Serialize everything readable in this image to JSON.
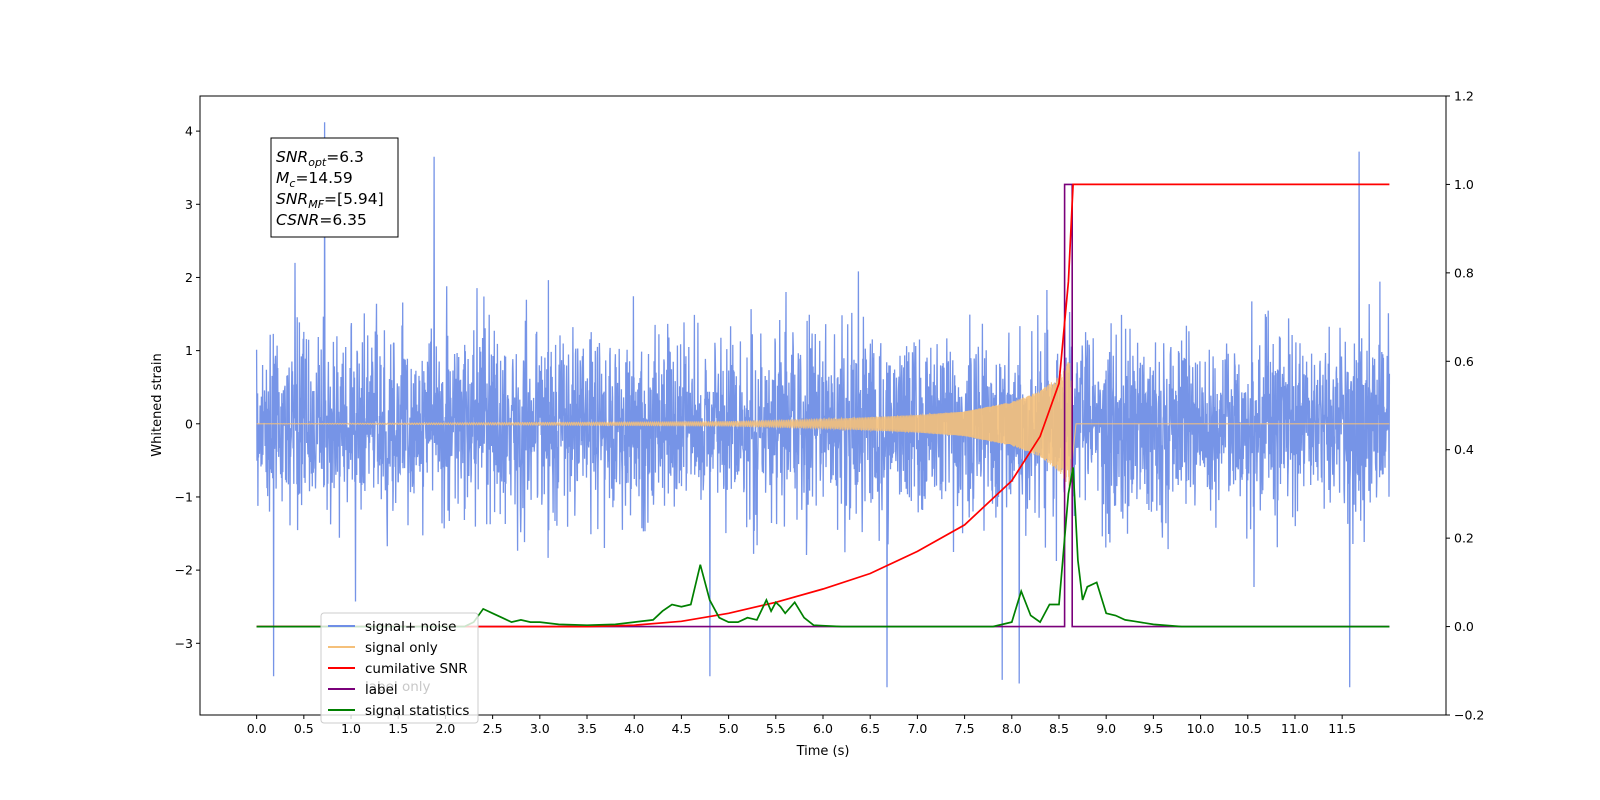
{
  "chart_data": {
    "type": "line",
    "xlabel": "Time (s)",
    "ylabel": "Whitened strain",
    "xlim": [
      -0.6,
      12.6
    ],
    "ylim": [
      -3.98,
      4.48
    ],
    "y2lim": [
      -0.2,
      1.2
    ],
    "x_ticks": [
      "0.0",
      "0.5",
      "1.0",
      "1.5",
      "2.0",
      "2.5",
      "3.0",
      "3.5",
      "4.0",
      "4.5",
      "5.0",
      "5.5",
      "6.0",
      "6.5",
      "7.0",
      "7.5",
      "8.0",
      "8.5",
      "9.0",
      "9.5",
      "10.0",
      "10.5",
      "11.0",
      "11.5"
    ],
    "y_ticks": [
      "−3",
      "−2",
      "−1",
      "0",
      "1",
      "2",
      "3",
      "4"
    ],
    "y2_ticks": [
      "−0.2",
      "0.0",
      "0.2",
      "0.4",
      "0.6",
      "0.8",
      "1.0",
      "1.2"
    ],
    "annotation": {
      "lines": [
        {
          "base": "SNR",
          "sub": "opt",
          "rest": "=6.3"
        },
        {
          "base": "M",
          "sub": "c",
          "rest": "=14.59"
        },
        {
          "base": "SNR",
          "sub": "MF",
          "rest": "=[5.94]"
        },
        {
          "base": "CSNR",
          "sub": "",
          "rest": "=6.35"
        }
      ]
    },
    "legend": {
      "placement": "lower-left",
      "entries": [
        "signal+ noise",
        "signal only",
        "cumilative SNR",
        "label",
        "signal statistics"
      ],
      "occluded_text": "label only"
    },
    "series": [
      {
        "name": "signal+ noise",
        "axis": "left",
        "color": "#6f8ee6",
        "x_range": [
          0.0,
          12.0
        ],
        "typical_band": [
          -1.5,
          1.5
        ],
        "extreme_range": [
          -3.6,
          4.12
        ],
        "notable_peaks": [
          [
            0.72,
            4.12
          ],
          [
            11.68,
            3.72
          ],
          [
            1.88,
            3.65
          ],
          [
            6.68,
            -3.6
          ],
          [
            11.58,
            -3.6
          ],
          [
            0.18,
            -3.45
          ],
          [
            7.9,
            -3.5
          ],
          [
            4.8,
            -3.45
          ],
          [
            8.08,
            -3.55
          ]
        ]
      },
      {
        "name": "signal only",
        "axis": "left",
        "color": "#f5c07a",
        "type": "chirp",
        "merger_time": 8.62,
        "peak_amplitude": 0.9,
        "amplitude_samples": [
          [
            0.0,
            0.0
          ],
          [
            5.0,
            0.03
          ],
          [
            6.0,
            0.06
          ],
          [
            7.0,
            0.12
          ],
          [
            7.5,
            0.17
          ],
          [
            8.0,
            0.3
          ],
          [
            8.3,
            0.45
          ],
          [
            8.5,
            0.65
          ],
          [
            8.62,
            0.9
          ],
          [
            8.68,
            0.0
          ],
          [
            12.0,
            0.0
          ]
        ]
      },
      {
        "name": "cumilative SNR",
        "axis": "right",
        "color": "#ff0000",
        "x": [
          0.0,
          3.5,
          4.0,
          4.5,
          5.0,
          5.5,
          6.0,
          6.5,
          7.0,
          7.5,
          8.0,
          8.3,
          8.5,
          8.6,
          8.65,
          12.0
        ],
        "y": [
          0.0,
          0.0,
          0.003,
          0.012,
          0.03,
          0.055,
          0.085,
          0.12,
          0.17,
          0.23,
          0.33,
          0.43,
          0.55,
          0.78,
          1.0,
          1.0
        ]
      },
      {
        "name": "label",
        "axis": "right",
        "color": "#7a007a",
        "x": [
          0.0,
          8.56,
          8.56,
          8.64,
          8.64,
          12.0
        ],
        "y": [
          0.0,
          0.0,
          1.0,
          1.0,
          0.0,
          0.0
        ]
      },
      {
        "name": "signal statistics",
        "axis": "right",
        "color": "#008000",
        "x": [
          0.0,
          2.2,
          2.3,
          2.4,
          2.5,
          2.6,
          2.7,
          2.8,
          2.9,
          3.0,
          3.2,
          3.5,
          3.8,
          4.0,
          4.2,
          4.3,
          4.4,
          4.5,
          4.6,
          4.7,
          4.8,
          4.9,
          5.0,
          5.1,
          5.2,
          5.3,
          5.4,
          5.45,
          5.5,
          5.55,
          5.6,
          5.7,
          5.8,
          5.9,
          6.0,
          6.2,
          7.8,
          8.0,
          8.1,
          8.2,
          8.3,
          8.4,
          8.5,
          8.6,
          8.65,
          8.7,
          8.75,
          8.8,
          8.9,
          9.0,
          9.1,
          9.2,
          9.3,
          9.5,
          9.8,
          12.0
        ],
        "y": [
          0.0,
          0.0,
          0.01,
          0.04,
          0.03,
          0.02,
          0.01,
          0.015,
          0.01,
          0.01,
          0.005,
          0.003,
          0.005,
          0.01,
          0.015,
          0.035,
          0.05,
          0.045,
          0.05,
          0.14,
          0.06,
          0.02,
          0.01,
          0.01,
          0.02,
          0.015,
          0.06,
          0.035,
          0.055,
          0.045,
          0.03,
          0.055,
          0.02,
          0.003,
          0.002,
          0.0,
          0.0,
          0.01,
          0.08,
          0.025,
          0.01,
          0.05,
          0.05,
          0.3,
          0.36,
          0.15,
          0.06,
          0.09,
          0.1,
          0.03,
          0.025,
          0.015,
          0.012,
          0.005,
          0.0,
          0.0
        ]
      }
    ]
  }
}
